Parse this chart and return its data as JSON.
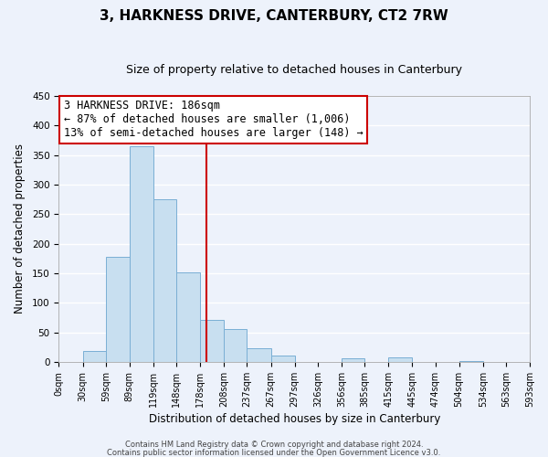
{
  "title": "3, HARKNESS DRIVE, CANTERBURY, CT2 7RW",
  "subtitle": "Size of property relative to detached houses in Canterbury",
  "xlabel": "Distribution of detached houses by size in Canterbury",
  "ylabel": "Number of detached properties",
  "bar_color": "#c8dff0",
  "bar_edge_color": "#7aafd4",
  "bin_edges": [
    0,
    30,
    59,
    89,
    119,
    148,
    178,
    208,
    237,
    267,
    297,
    326,
    356,
    385,
    415,
    445,
    474,
    504,
    534,
    563,
    593
  ],
  "bar_heights": [
    0,
    18,
    178,
    365,
    275,
    152,
    71,
    55,
    23,
    10,
    0,
    0,
    6,
    0,
    8,
    0,
    0,
    1,
    0,
    0
  ],
  "tick_labels": [
    "0sqm",
    "30sqm",
    "59sqm",
    "89sqm",
    "119sqm",
    "148sqm",
    "178sqm",
    "208sqm",
    "237sqm",
    "267sqm",
    "297sqm",
    "326sqm",
    "356sqm",
    "385sqm",
    "415sqm",
    "445sqm",
    "474sqm",
    "504sqm",
    "534sqm",
    "563sqm",
    "593sqm"
  ],
  "property_line_x": 186,
  "property_line_color": "#cc0000",
  "annotation_line1": "3 HARKNESS DRIVE: 186sqm",
  "annotation_line2": "← 87% of detached houses are smaller (1,006)",
  "annotation_line3": "13% of semi-detached houses are larger (148) →",
  "ylim": [
    0,
    450
  ],
  "footnote1": "Contains HM Land Registry data © Crown copyright and database right 2024.",
  "footnote2": "Contains public sector information licensed under the Open Government Licence v3.0.",
  "background_color": "#edf2fb",
  "grid_color": "#ffffff",
  "title_fontsize": 11,
  "subtitle_fontsize": 9,
  "axis_label_fontsize": 8.5,
  "tick_fontsize": 7,
  "annotation_fontsize": 8.5,
  "footnote_fontsize": 6
}
